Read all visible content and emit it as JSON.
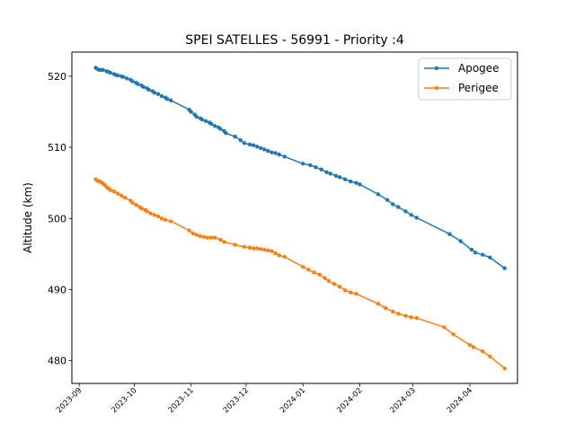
{
  "chart_data": {
    "type": "line",
    "title": "SPEI SATELLES - 56991 - Priority :4",
    "xlabel": "",
    "ylabel": "Altitude (km)",
    "x_type": "date",
    "xlim": [
      "2023-08-28",
      "2024-04-27"
    ],
    "ylim": [
      476.8,
      523.4
    ],
    "x_ticks": [
      "2023-09-01",
      "2023-10-01",
      "2023-11-01",
      "2023-12-01",
      "2024-01-01",
      "2024-02-01",
      "2024-03-01",
      "2024-04-01"
    ],
    "x_tick_labels": [
      "2023-09",
      "2023-10",
      "2023-11",
      "2023-12",
      "2024-01",
      "2024-02",
      "2024-03",
      "2024-04"
    ],
    "y_ticks": [
      480,
      490,
      500,
      510,
      520
    ],
    "y_tick_labels": [
      "480",
      "490",
      "500",
      "510",
      "520"
    ],
    "grid": false,
    "legend": "top-right",
    "series": [
      {
        "name": "Apogee",
        "color": "#1f77b4",
        "points": [
          [
            "2023-09-10",
            521.2
          ],
          [
            "2023-09-11",
            521.0
          ],
          [
            "2023-09-12",
            520.9
          ],
          [
            "2023-09-13",
            520.9
          ],
          [
            "2023-09-14",
            520.9
          ],
          [
            "2023-09-16",
            520.7
          ],
          [
            "2023-09-17",
            520.6
          ],
          [
            "2023-09-18",
            520.5
          ],
          [
            "2023-09-20",
            520.3
          ],
          [
            "2023-09-21",
            520.2
          ],
          [
            "2023-09-22",
            520.1
          ],
          [
            "2023-09-24",
            520.0
          ],
          [
            "2023-09-25",
            519.9
          ],
          [
            "2023-09-27",
            519.7
          ],
          [
            "2023-09-29",
            519.5
          ],
          [
            "2023-09-30",
            519.3
          ],
          [
            "2023-10-02",
            519.1
          ],
          [
            "2023-10-03",
            518.9
          ],
          [
            "2023-10-05",
            518.7
          ],
          [
            "2023-10-06",
            518.5
          ],
          [
            "2023-10-08",
            518.3
          ],
          [
            "2023-10-09",
            518.1
          ],
          [
            "2023-10-11",
            517.9
          ],
          [
            "2023-10-12",
            517.7
          ],
          [
            "2023-10-14",
            517.5
          ],
          [
            "2023-10-16",
            517.2
          ],
          [
            "2023-10-18",
            517.0
          ],
          [
            "2023-10-19",
            516.8
          ],
          [
            "2023-10-21",
            516.6
          ],
          [
            "2023-10-31",
            515.3
          ],
          [
            "2023-11-01",
            515.0
          ],
          [
            "2023-11-03",
            514.6
          ],
          [
            "2023-11-04",
            514.3
          ],
          [
            "2023-11-06",
            514.1
          ],
          [
            "2023-11-07",
            513.9
          ],
          [
            "2023-11-09",
            513.7
          ],
          [
            "2023-11-11",
            513.5
          ],
          [
            "2023-11-12",
            513.3
          ],
          [
            "2023-11-14",
            513.0
          ],
          [
            "2023-11-16",
            512.8
          ],
          [
            "2023-11-17",
            512.6
          ],
          [
            "2023-11-19",
            512.3
          ],
          [
            "2023-11-20",
            512.0
          ],
          [
            "2023-11-25",
            511.5
          ],
          [
            "2023-11-28",
            511.0
          ],
          [
            "2023-11-30",
            510.6
          ],
          [
            "2023-12-03",
            510.4
          ],
          [
            "2023-12-05",
            510.3
          ],
          [
            "2023-12-07",
            510.1
          ],
          [
            "2023-12-09",
            509.9
          ],
          [
            "2023-12-11",
            509.7
          ],
          [
            "2023-12-13",
            509.5
          ],
          [
            "2023-12-15",
            509.3
          ],
          [
            "2023-12-17",
            509.2
          ],
          [
            "2023-12-19",
            509.0
          ],
          [
            "2023-12-22",
            508.7
          ],
          [
            "2024-01-01",
            507.7
          ],
          [
            "2024-01-05",
            507.5
          ],
          [
            "2024-01-08",
            507.2
          ],
          [
            "2024-01-11",
            506.9
          ],
          [
            "2024-01-14",
            506.5
          ],
          [
            "2024-01-16",
            506.3
          ],
          [
            "2024-01-19",
            506.0
          ],
          [
            "2024-01-21",
            505.8
          ],
          [
            "2024-01-24",
            505.5
          ],
          [
            "2024-01-27",
            505.2
          ],
          [
            "2024-01-30",
            505.0
          ],
          [
            "2024-02-01",
            504.8
          ],
          [
            "2024-02-11",
            503.4
          ],
          [
            "2024-02-16",
            502.6
          ],
          [
            "2024-02-19",
            502.0
          ],
          [
            "2024-02-22",
            501.6
          ],
          [
            "2024-02-26",
            501.0
          ],
          [
            "2024-02-29",
            500.5
          ],
          [
            "2024-03-03",
            500.1
          ],
          [
            "2024-03-21",
            497.8
          ],
          [
            "2024-03-27",
            496.8
          ],
          [
            "2024-04-02",
            495.6
          ],
          [
            "2024-04-04",
            495.2
          ],
          [
            "2024-04-08",
            494.9
          ],
          [
            "2024-04-12",
            494.5
          ],
          [
            "2024-04-20",
            493.0
          ]
        ]
      },
      {
        "name": "Perigee",
        "color": "#ff7f0e",
        "points": [
          [
            "2023-09-10",
            505.5
          ],
          [
            "2023-09-11",
            505.3
          ],
          [
            "2023-09-12",
            505.2
          ],
          [
            "2023-09-13",
            505.1
          ],
          [
            "2023-09-14",
            504.9
          ],
          [
            "2023-09-15",
            504.7
          ],
          [
            "2023-09-16",
            504.4
          ],
          [
            "2023-09-17",
            504.2
          ],
          [
            "2023-09-18",
            504.0
          ],
          [
            "2023-09-20",
            503.8
          ],
          [
            "2023-09-22",
            503.5
          ],
          [
            "2023-09-24",
            503.2
          ],
          [
            "2023-09-26",
            502.9
          ],
          [
            "2023-09-29",
            502.5
          ],
          [
            "2023-09-30",
            502.2
          ],
          [
            "2023-10-02",
            501.9
          ],
          [
            "2023-10-04",
            501.6
          ],
          [
            "2023-10-05",
            501.4
          ],
          [
            "2023-10-07",
            501.2
          ],
          [
            "2023-10-08",
            501.0
          ],
          [
            "2023-10-10",
            500.7
          ],
          [
            "2023-10-12",
            500.5
          ],
          [
            "2023-10-14",
            500.3
          ],
          [
            "2023-10-16",
            500.0
          ],
          [
            "2023-10-18",
            499.8
          ],
          [
            "2023-10-21",
            499.6
          ],
          [
            "2023-10-31",
            498.3
          ],
          [
            "2023-11-02",
            497.9
          ],
          [
            "2023-11-04",
            497.7
          ],
          [
            "2023-11-06",
            497.5
          ],
          [
            "2023-11-08",
            497.4
          ],
          [
            "2023-11-10",
            497.3
          ],
          [
            "2023-11-12",
            497.3
          ],
          [
            "2023-11-14",
            497.3
          ],
          [
            "2023-11-17",
            497.0
          ],
          [
            "2023-11-19",
            496.7
          ],
          [
            "2023-11-25",
            496.3
          ],
          [
            "2023-11-30",
            496.0
          ],
          [
            "2023-12-03",
            495.9
          ],
          [
            "2023-12-05",
            495.8
          ],
          [
            "2023-12-07",
            495.8
          ],
          [
            "2023-12-09",
            495.7
          ],
          [
            "2023-12-11",
            495.6
          ],
          [
            "2023-12-13",
            495.5
          ],
          [
            "2023-12-15",
            495.4
          ],
          [
            "2023-12-17",
            495.1
          ],
          [
            "2023-12-19",
            494.8
          ],
          [
            "2023-12-22",
            494.6
          ],
          [
            "2024-01-01",
            493.2
          ],
          [
            "2024-01-04",
            492.8
          ],
          [
            "2024-01-07",
            492.4
          ],
          [
            "2024-01-10",
            492.1
          ],
          [
            "2024-01-13",
            491.6
          ],
          [
            "2024-01-15",
            491.2
          ],
          [
            "2024-01-18",
            490.8
          ],
          [
            "2024-01-21",
            490.4
          ],
          [
            "2024-01-24",
            489.9
          ],
          [
            "2024-01-27",
            489.6
          ],
          [
            "2024-01-30",
            489.4
          ],
          [
            "2024-02-11",
            488.0
          ],
          [
            "2024-02-15",
            487.4
          ],
          [
            "2024-02-19",
            486.9
          ],
          [
            "2024-02-22",
            486.6
          ],
          [
            "2024-02-26",
            486.3
          ],
          [
            "2024-02-29",
            486.1
          ],
          [
            "2024-03-03",
            486.0
          ],
          [
            "2024-03-18",
            484.7
          ],
          [
            "2024-03-23",
            483.7
          ],
          [
            "2024-04-01",
            482.2
          ],
          [
            "2024-04-03",
            481.9
          ],
          [
            "2024-04-08",
            481.3
          ],
          [
            "2024-04-12",
            480.6
          ],
          [
            "2024-04-20",
            478.9
          ]
        ]
      }
    ]
  }
}
